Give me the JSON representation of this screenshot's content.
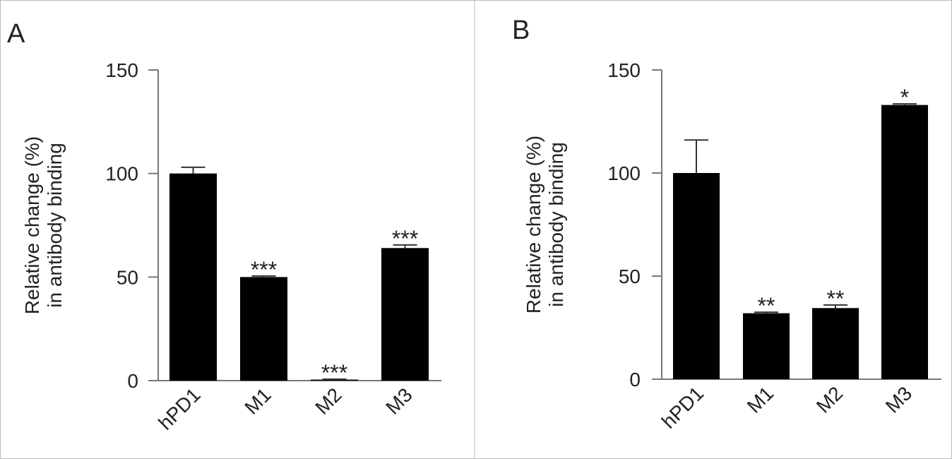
{
  "chart_data": [
    {
      "panel_label": "A",
      "type": "bar",
      "categories": [
        "hPD1",
        "M1",
        "M2",
        "M3"
      ],
      "values": [
        100,
        50,
        0.5,
        64
      ],
      "error_upper": [
        103,
        50.5,
        0.7,
        65.5
      ],
      "significance": [
        "",
        "***",
        "***",
        "***"
      ],
      "ylabel_line1": "Relative change (%)",
      "ylabel_line2": "in antibody binding",
      "ylim": [
        0,
        150
      ],
      "yticks": [
        0,
        50,
        100,
        150
      ],
      "bar_color": "#000000",
      "grid": false
    },
    {
      "panel_label": "B",
      "type": "bar",
      "categories": [
        "hPD1",
        "M1",
        "M2",
        "M3"
      ],
      "values": [
        100,
        32,
        34.5,
        133
      ],
      "error_upper": [
        116,
        32.5,
        36,
        133.5
      ],
      "significance": [
        "",
        "**",
        "**",
        "*"
      ],
      "ylabel_line1": "Relative change (%)",
      "ylabel_line2": "in antibody binding",
      "ylim": [
        0,
        150
      ],
      "yticks": [
        0,
        50,
        100,
        150
      ],
      "bar_color": "#000000",
      "grid": false
    }
  ]
}
